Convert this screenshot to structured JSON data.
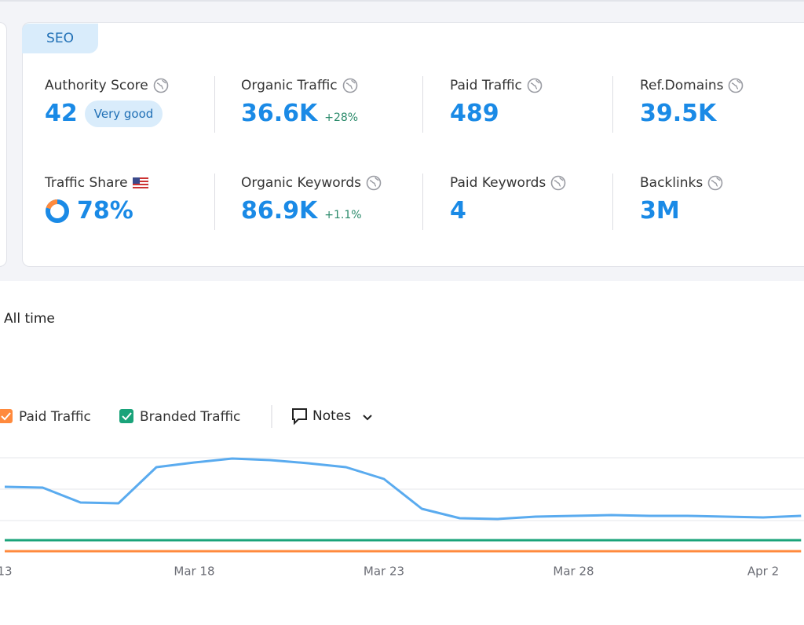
{
  "tab": "SEO",
  "metrics": [
    {
      "label": "Authority Score",
      "value": "42",
      "badge": "Very good"
    },
    {
      "label": "Organic Traffic",
      "value": "36.6K",
      "change": "+28%"
    },
    {
      "label": "Paid Traffic",
      "value": "489"
    },
    {
      "label": "Ref.Domains",
      "value": "39.5K"
    },
    {
      "label": "Traffic Share",
      "value": "78%"
    },
    {
      "label": "Organic Keywords",
      "value": "86.9K",
      "change": "+1.1%"
    },
    {
      "label": "Paid Keywords",
      "value": "4"
    },
    {
      "label": "Backlinks",
      "value": "3M"
    }
  ],
  "period": "All time",
  "notes_button": "Notes",
  "chart_data": {
    "type": "line",
    "categories": [
      "13",
      null,
      null,
      null,
      null,
      "Mar 18",
      null,
      null,
      null,
      null,
      "Mar 23",
      null,
      null,
      null,
      null,
      "Mar 28",
      null,
      null,
      null,
      null,
      "Apr 2",
      null
    ],
    "series": [
      {
        "color": "#5aabef",
        "values": [
          83,
          82,
          63,
          62,
          108,
          114,
          119,
          117,
          113,
          108,
          93,
          55,
          43,
          42,
          45,
          46,
          47,
          46,
          46,
          45,
          44,
          46
        ]
      },
      {
        "name": "Paid Traffic",
        "color": "#ff8a3d",
        "values": [
          1,
          1,
          1,
          1,
          1,
          1,
          1,
          1,
          1,
          1,
          1,
          1,
          1,
          1,
          1,
          1,
          1,
          1,
          1,
          1,
          1,
          1
        ]
      },
      {
        "name": "Branded Traffic",
        "color": "#1aa37a",
        "values": [
          15,
          15,
          15,
          15,
          15,
          15,
          15,
          15,
          15,
          15,
          15,
          15,
          15,
          15,
          15,
          15,
          15,
          15,
          15,
          15,
          15,
          15
        ]
      }
    ],
    "ylim": [
      0,
      120
    ]
  }
}
